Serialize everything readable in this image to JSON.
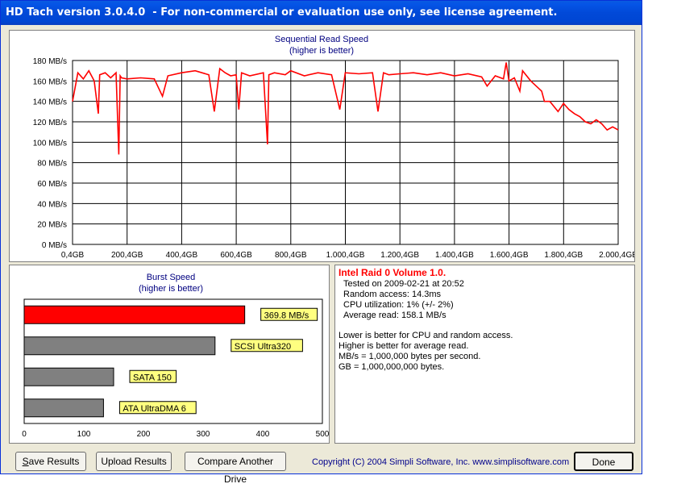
{
  "window": {
    "title": "HD Tach version 3.0.4.0  - For non-commercial or evaluation use only, see license agreement."
  },
  "read_chart": {
    "title": "Sequential Read Speed",
    "subtitle": "(higher is better)",
    "y_ticks": [
      "0 MB/s",
      "20 MB/s",
      "40 MB/s",
      "60 MB/s",
      "80 MB/s",
      "100 MB/s",
      "120 MB/s",
      "140 MB/s",
      "160 MB/s",
      "180 MB/s"
    ],
    "x_ticks": [
      "0,4GB",
      "200,4GB",
      "400,4GB",
      "600,4GB",
      "800,4GB",
      "1.000,4GB",
      "1.200,4GB",
      "1.400,4GB",
      "1.600,4GB",
      "1.800,4GB",
      "2.000,4GE"
    ]
  },
  "burst_chart": {
    "title": "Burst Speed",
    "subtitle": "(higher is better)",
    "x_ticks": [
      "0",
      "100",
      "200",
      "300",
      "400",
      "500"
    ]
  },
  "info": {
    "drive_name": "Intel Raid 0 Volume 1.0.",
    "tested_on": "Tested on 2009-02-21 at 20:52",
    "random_access": "Random access: 14.3ms",
    "cpu_utilization": "CPU utilization: 1% (+/- 2%)",
    "average_read": "Average read: 158.1 MB/s",
    "note1": "Lower is better for CPU and random access.",
    "note2": "Higher is better for average read.",
    "note3": "MB/s = 1,000,000 bytes per second.",
    "note4": "GB = 1,000,000,000 bytes."
  },
  "buttons": {
    "save": "Save Results",
    "upload": "Upload Results",
    "compare": "Compare Another Drive",
    "done": "Done"
  },
  "copyright": "Copyright (C) 2004 Simpli Software, Inc. www.simplisoftware.com",
  "chart_data": [
    {
      "type": "line",
      "title": "Sequential Read Speed",
      "subtitle": "(higher is better)",
      "ylim": [
        0,
        180
      ],
      "xlim": [
        0.4,
        2000.4
      ],
      "color": "#ff0000",
      "x": [
        0.4,
        20,
        40,
        60,
        80,
        95,
        100,
        120,
        140,
        160,
        170,
        175,
        180,
        200,
        250,
        300,
        330,
        350,
        400,
        450,
        500,
        520,
        540,
        560,
        580,
        600,
        610,
        620,
        650,
        700,
        715,
        720,
        740,
        780,
        800,
        850,
        900,
        950,
        980,
        1000,
        1050,
        1100,
        1120,
        1140,
        1160,
        1200,
        1250,
        1300,
        1350,
        1400,
        1450,
        1500,
        1520,
        1550,
        1580,
        1590,
        1600,
        1620,
        1640,
        1650,
        1680,
        1700,
        1720,
        1730,
        1750,
        1780,
        1800,
        1820,
        1840,
        1860,
        1880,
        1900,
        1920,
        1940,
        1960,
        1980,
        2000.4
      ],
      "y": [
        140,
        168,
        162,
        170,
        160,
        128,
        166,
        168,
        163,
        168,
        88,
        165,
        163,
        162,
        163,
        162,
        145,
        165,
        168,
        170,
        166,
        130,
        172,
        168,
        165,
        166,
        132,
        168,
        165,
        168,
        98,
        166,
        168,
        166,
        170,
        165,
        168,
        166,
        132,
        168,
        167,
        168,
        130,
        168,
        166,
        167,
        168,
        166,
        168,
        165,
        167,
        164,
        155,
        165,
        162,
        178,
        160,
        163,
        150,
        170,
        160,
        155,
        150,
        140,
        140,
        130,
        138,
        132,
        128,
        125,
        120,
        118,
        122,
        118,
        112,
        115,
        112
      ]
    },
    {
      "type": "bar",
      "title": "Burst Speed",
      "subtitle": "(higher is better)",
      "orientation": "horizontal",
      "xlim": [
        0,
        500
      ],
      "categories": [
        "369.8 MB/s",
        "SCSI Ultra320",
        "SATA 150",
        "ATA UltraDMA 6"
      ],
      "values": [
        369.8,
        320,
        150,
        133
      ],
      "colors": [
        "#ff0000",
        "#808080",
        "#808080",
        "#808080"
      ]
    }
  ]
}
